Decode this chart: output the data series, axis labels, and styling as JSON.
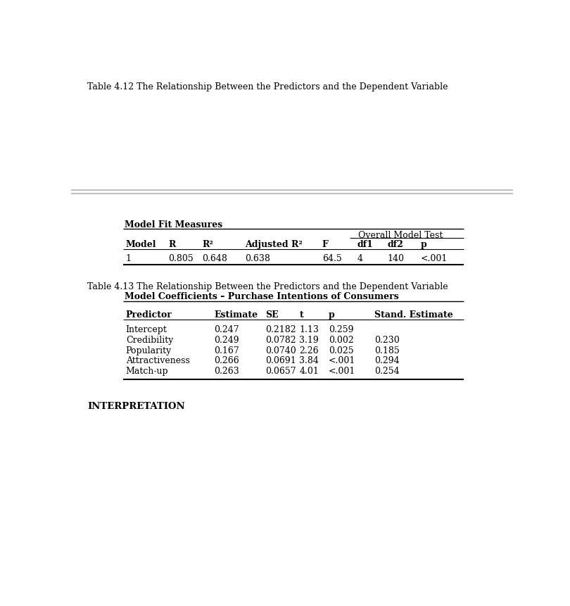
{
  "bg_color": "#ffffff",
  "title412": "Table 4.12 The Relationship Between the Predictors and the Dependent Variable",
  "title413": "Table 4.13 The Relationship Between the Predictors and the Dependent Variable",
  "subtitle413": "Model Coefficients – Purchase Intentions of Consumers",
  "subtitle412": "Model Fit Measures",
  "overall_model_test": "Overall Model Test",
  "table412_headers": [
    "Model",
    "R",
    "R²",
    "Adjusted R²",
    "F",
    "df1",
    "df2",
    "p"
  ],
  "table412_row": [
    "1",
    "0.805",
    "0.648",
    "0.638",
    "64.5",
    "4",
    "140",
    "<.001"
  ],
  "table413_headers": [
    "Predictor",
    "Estimate",
    "SE",
    "t",
    "p",
    "Stand. Estimate"
  ],
  "table413_rows": [
    [
      "Intercept",
      "0.247",
      "0.2182",
      "1.13",
      "0.259",
      ""
    ],
    [
      "Credibility",
      "0.249",
      "0.0782",
      "3.19",
      "0.002",
      "0.230"
    ],
    [
      "Popularity",
      "0.167",
      "0.0740",
      "2.26",
      "0.025",
      "0.185"
    ],
    [
      "Attractiveness",
      "0.266",
      "0.0691",
      "3.84",
      "<.001",
      "0.294"
    ],
    [
      "Match-up",
      "0.263",
      "0.0657",
      "4.01",
      "<.001",
      "0.254"
    ]
  ],
  "footer": "INTERPRETATION",
  "text_color": "#000000",
  "font_size": 9.0,
  "font_size_footer": 9.5,
  "sep_line_color": "#c0c0c0",
  "table_line_color": "#000000"
}
